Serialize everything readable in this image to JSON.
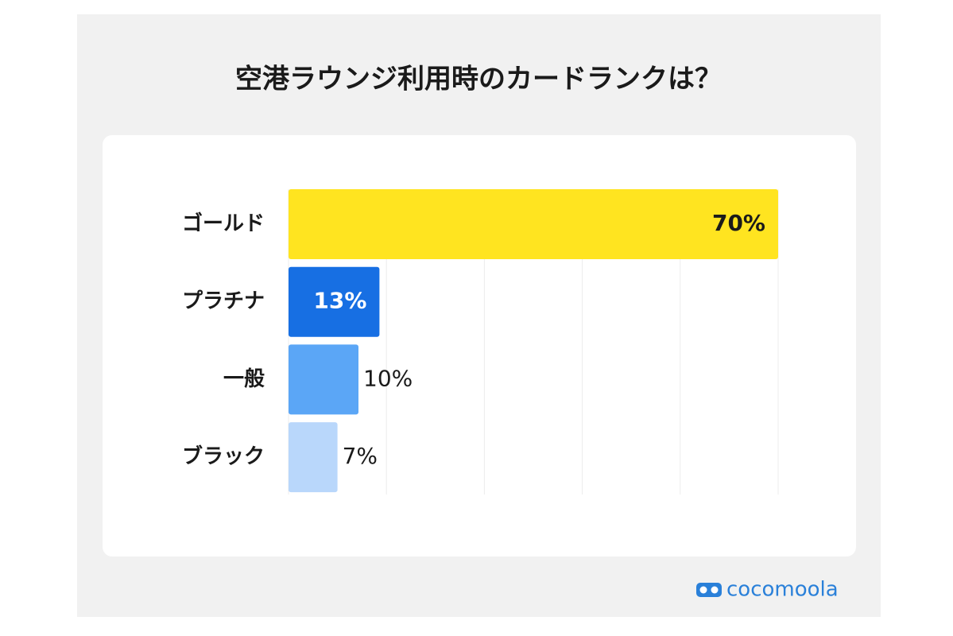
{
  "chart_data": {
    "type": "barh",
    "title": "空港ラウンジ利用時のカードランクは？",
    "categories": [
      "ゴールド",
      "プラチナ",
      "一般",
      "ブラック"
    ],
    "values": [
      70,
      13,
      10,
      7
    ],
    "value_labels": [
      "70%",
      "13%",
      "10%",
      "7%"
    ],
    "colors": [
      "#ffe420",
      "#176fe3",
      "#5ba6f6",
      "#b9d7fb"
    ],
    "xlim": [
      0,
      70
    ],
    "xticks": [
      0,
      14,
      28,
      42,
      56,
      70
    ],
    "grid": true
  },
  "brand": "cocomoola"
}
